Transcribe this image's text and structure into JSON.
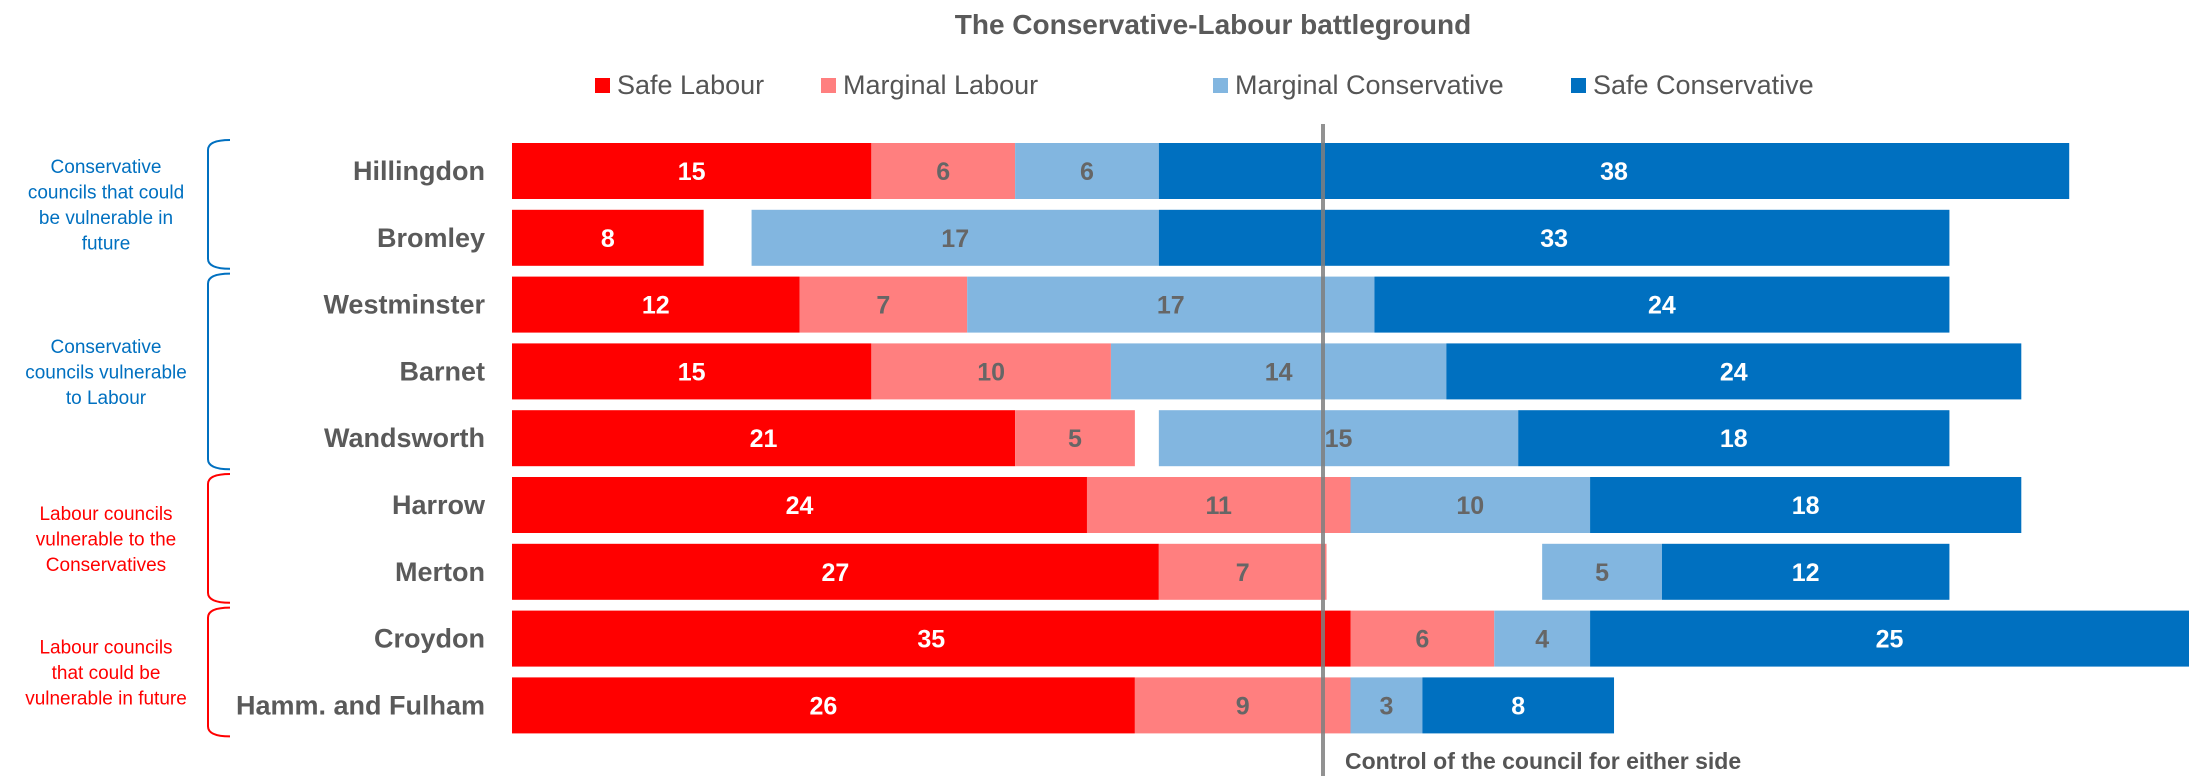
{
  "colors": {
    "safe_labour": "#FF0000",
    "marginal_labour": "#FF7F7F",
    "marginal_conservative": "#82B6E0",
    "safe_conservative": "#0070C0",
    "conservative_group": "#0070C0",
    "labour_group": "#FF0000",
    "midline": "#7F7F7F"
  },
  "chart_data": {
    "type": "bar",
    "orientation": "horizontal",
    "stacked": true,
    "title": "The Conservative-Labour battleground",
    "legend_position": "top",
    "categories": [
      "Hillingdon",
      "Bromley",
      "Westminster",
      "Barnet",
      "Wandsworth",
      "Harrow",
      "Merton",
      "Croydon",
      "Hamm. and Fulham"
    ],
    "series": [
      {
        "name": "Safe Labour",
        "color": "#FF0000",
        "label_color": "#FFFFFF",
        "values": [
          15,
          8,
          12,
          15,
          21,
          24,
          27,
          35,
          26
        ]
      },
      {
        "name": "Marginal Labour",
        "color": "#FF7F7F",
        "label_color": "#666666",
        "values": [
          6,
          0,
          7,
          10,
          5,
          11,
          7,
          6,
          9
        ]
      },
      {
        "name": "Marginal Conservative",
        "color": "#82B6E0",
        "label_color": "#666666",
        "values": [
          6,
          17,
          17,
          14,
          15,
          10,
          5,
          4,
          3
        ]
      },
      {
        "name": "Safe Conservative",
        "color": "#0070C0",
        "label_color": "#FFFFFF",
        "values": [
          38,
          33,
          24,
          24,
          18,
          18,
          12,
          25,
          8
        ]
      }
    ],
    "gap_to_align": [
      0,
      2,
      0,
      0,
      1,
      0,
      9,
      0,
      0
    ],
    "groups": [
      {
        "label": "Conservative councils that could be vulnerable in future",
        "color": "#0070C0",
        "lines": [
          "Conservative",
          "councils that could",
          "be vulnerable in",
          "future"
        ],
        "rows": [
          0,
          1
        ]
      },
      {
        "label": "Conservative councils vulnerable to Labour",
        "color": "#0070C0",
        "lines": [
          "Conservative",
          "councils vulnerable",
          "to Labour"
        ],
        "rows": [
          2,
          4
        ]
      },
      {
        "label": "Labour councils vulnerable to the Conservatives",
        "color": "#FF0000",
        "lines": [
          "Labour councils",
          "vulnerable to the",
          "Conservatives"
        ],
        "rows": [
          5,
          6
        ]
      },
      {
        "label": "Labour councils that could be vulnerable in future",
        "color": "#FF0000",
        "lines": [
          "Labour councils",
          "that could be",
          "vulnerable in future"
        ],
        "rows": [
          7,
          8
        ]
      }
    ],
    "midline_label": "Control of the council for either side"
  }
}
